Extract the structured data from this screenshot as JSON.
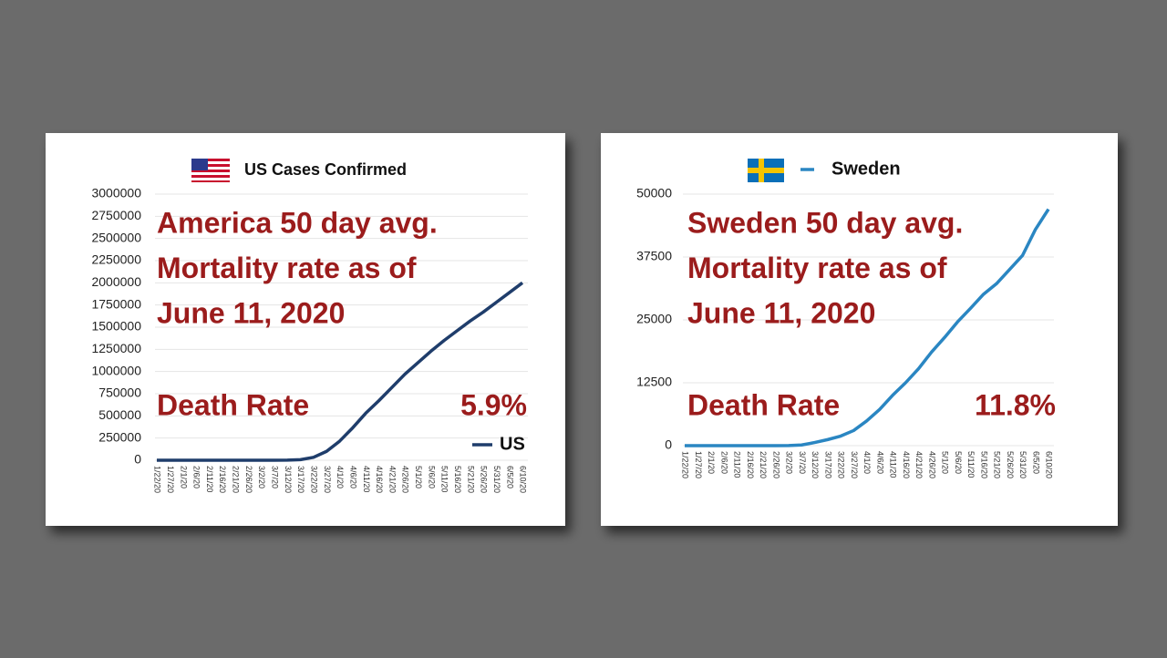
{
  "chart_data": [
    {
      "type": "line",
      "title": "US Cases Confirmed",
      "categories": [
        "1/22/20",
        "1/27/20",
        "2/1/20",
        "2/6/20",
        "2/11/20",
        "2/16/20",
        "2/21/20",
        "2/26/20",
        "3/2/20",
        "3/7/20",
        "3/12/20",
        "3/17/20",
        "3/22/20",
        "3/27/20",
        "4/1/20",
        "4/6/20",
        "4/11/20",
        "4/16/20",
        "4/21/20",
        "4/26/20",
        "5/1/20",
        "5/6/20",
        "5/11/20",
        "5/16/20",
        "5/21/20",
        "5/26/20",
        "5/31/20",
        "6/5/20",
        "6/10/20"
      ],
      "series": [
        {
          "name": "US",
          "color": "#1f3d6b",
          "values": [
            1,
            5,
            8,
            12,
            13,
            15,
            35,
            60,
            100,
            400,
            1600,
            6400,
            33000,
            100000,
            215000,
            365000,
            530000,
            670000,
            820000,
            970000,
            1100000,
            1230000,
            1350000,
            1460000,
            1570000,
            1670000,
            1780000,
            1890000,
            2000000
          ]
        }
      ],
      "ylim": [
        0,
        3000000
      ],
      "yticks": [
        0,
        250000,
        500000,
        750000,
        1000000,
        1250000,
        1500000,
        1750000,
        2000000,
        2250000,
        2500000,
        2750000,
        3000000
      ],
      "grid": true,
      "legend": "bottom-right",
      "annotations": [
        "America 50 day avg.",
        "Mortality rate as of",
        "June 11, 2020"
      ],
      "death_rate_text": "Death Rate",
      "death_rate_value": "5.9%"
    },
    {
      "type": "line",
      "title": null,
      "categories": [
        "1/22/20",
        "1/27/20",
        "2/1/20",
        "2/6/20",
        "2/11/20",
        "2/16/20",
        "2/21/20",
        "2/26/20",
        "3/2/20",
        "3/7/20",
        "3/12/20",
        "3/17/20",
        "3/22/20",
        "3/27/20",
        "4/1/20",
        "4/6/20",
        "4/11/20",
        "4/16/20",
        "4/21/20",
        "4/26/20",
        "5/1/20",
        "5/6/20",
        "5/11/20",
        "5/16/20",
        "5/21/20",
        "5/26/20",
        "5/31/20",
        "6/5/20",
        "6/10/20"
      ],
      "series": [
        {
          "name": "Sweden",
          "color": "#2a86c2",
          "values": [
            0,
            0,
            1,
            1,
            1,
            1,
            1,
            2,
            15,
            137,
            620,
            1200,
            1900,
            3000,
            4900,
            7200,
            10000,
            12500,
            15300,
            18600,
            21500,
            24600,
            27300,
            30100,
            32200,
            35000,
            37800,
            43000,
            47000
          ]
        }
      ],
      "ylim": [
        0,
        50000
      ],
      "yticks": [
        0,
        12500,
        25000,
        37500,
        50000
      ],
      "grid": true,
      "legend": "top",
      "annotations": [
        "Sweden 50 day avg.",
        "Mortality rate as of",
        "June 11, 2020"
      ],
      "death_rate_text": "Death Rate",
      "death_rate_value": "11.8%"
    }
  ]
}
